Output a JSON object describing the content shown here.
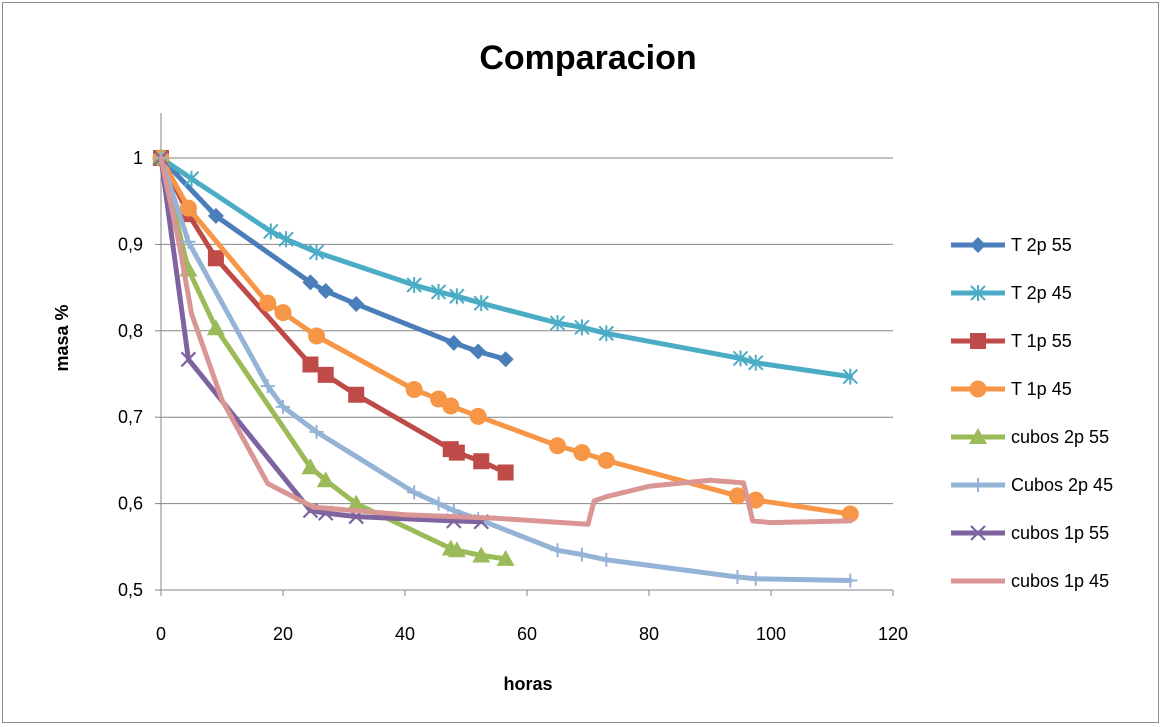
{
  "chart_data": {
    "type": "line",
    "title": "Comparacion",
    "xlabel": "horas",
    "ylabel": "masa %",
    "xlim": [
      0,
      120
    ],
    "ylim": [
      0.5,
      1.0
    ],
    "x_ticks": [
      "0",
      "20",
      "40",
      "60",
      "80",
      "100",
      "120"
    ],
    "y_ticks": [
      "0,5",
      "0,6",
      "0,7",
      "0,8",
      "0,9",
      "1"
    ],
    "grid": "horizontal",
    "legend_position": "right",
    "series": [
      {
        "name": "T 2p 55",
        "color": "#4a7ebb",
        "marker": "diamond",
        "x": [
          0,
          9,
          24.5,
          27,
          32,
          48,
          52,
          56.5
        ],
        "y": [
          1.0,
          0.933,
          0.856,
          0.846,
          0.831,
          0.786,
          0.776,
          0.767
        ]
      },
      {
        "name": "T 2p 45",
        "color": "#4bacc6",
        "marker": "star",
        "x": [
          0,
          5,
          18,
          20.5,
          25.5,
          41.5,
          45.5,
          48.5,
          52.5,
          65,
          69,
          73,
          95,
          97.5,
          113
        ],
        "y": [
          1.0,
          0.976,
          0.915,
          0.906,
          0.891,
          0.853,
          0.845,
          0.84,
          0.832,
          0.809,
          0.804,
          0.797,
          0.768,
          0.763,
          0.747
        ]
      },
      {
        "name": "T 1p 55",
        "color": "#be4b48",
        "marker": "square",
        "x": [
          0,
          4.5,
          9,
          24.5,
          27,
          32,
          47.5,
          48.5,
          52.5,
          56.5
        ],
        "y": [
          1.0,
          0.935,
          0.884,
          0.761,
          0.749,
          0.726,
          0.663,
          0.659,
          0.649,
          0.636
        ]
      },
      {
        "name": "T 1p 45",
        "color": "#f79646",
        "marker": "circle",
        "x": [
          0,
          4.5,
          17.5,
          20,
          25.5,
          41.5,
          45.5,
          47.5,
          52,
          65,
          69,
          73,
          94.5,
          97.5,
          113
        ],
        "y": [
          1.0,
          0.942,
          0.832,
          0.821,
          0.794,
          0.732,
          0.721,
          0.713,
          0.701,
          0.667,
          0.659,
          0.65,
          0.609,
          0.604,
          0.588
        ]
      },
      {
        "name": "cubos 2p 55",
        "color": "#9bbb59",
        "marker": "triangle",
        "x": [
          0,
          4.5,
          9,
          24.5,
          27,
          32,
          47.5,
          48.5,
          52.5,
          56.5
        ],
        "y": [
          1.0,
          0.871,
          0.803,
          0.642,
          0.627,
          0.6,
          0.548,
          0.546,
          0.54,
          0.536
        ]
      },
      {
        "name": "Cubos 2p 45",
        "color": "#95b3d7",
        "marker": "plus",
        "x": [
          0,
          4.5,
          17.5,
          20,
          25.5,
          41.5,
          45.5,
          48,
          52,
          65,
          69,
          73,
          94.5,
          97.5,
          113
        ],
        "y": [
          1.0,
          0.903,
          0.736,
          0.712,
          0.683,
          0.613,
          0.6,
          0.592,
          0.582,
          0.546,
          0.541,
          0.535,
          0.515,
          0.513,
          0.511
        ]
      },
      {
        "name": "cubos 1p 55",
        "color": "#7f63a1",
        "marker": "x",
        "x": [
          0,
          4.5,
          24.5,
          27,
          32,
          48,
          52.5
        ],
        "y": [
          1.0,
          0.767,
          0.592,
          0.589,
          0.585,
          0.58,
          0.579
        ]
      },
      {
        "name": "cubos 1p 45",
        "color": "#d99694",
        "marker": "none",
        "x": [
          0,
          3,
          5,
          10,
          17.5,
          20,
          25,
          40,
          55,
          68,
          70,
          71,
          73,
          80,
          90,
          95.5,
          96.5,
          97,
          100,
          113
        ],
        "y": [
          1.0,
          0.9,
          0.82,
          0.72,
          0.623,
          0.614,
          0.596,
          0.587,
          0.583,
          0.577,
          0.576,
          0.603,
          0.608,
          0.62,
          0.627,
          0.624,
          0.595,
          0.58,
          0.578,
          0.58
        ]
      }
    ]
  }
}
